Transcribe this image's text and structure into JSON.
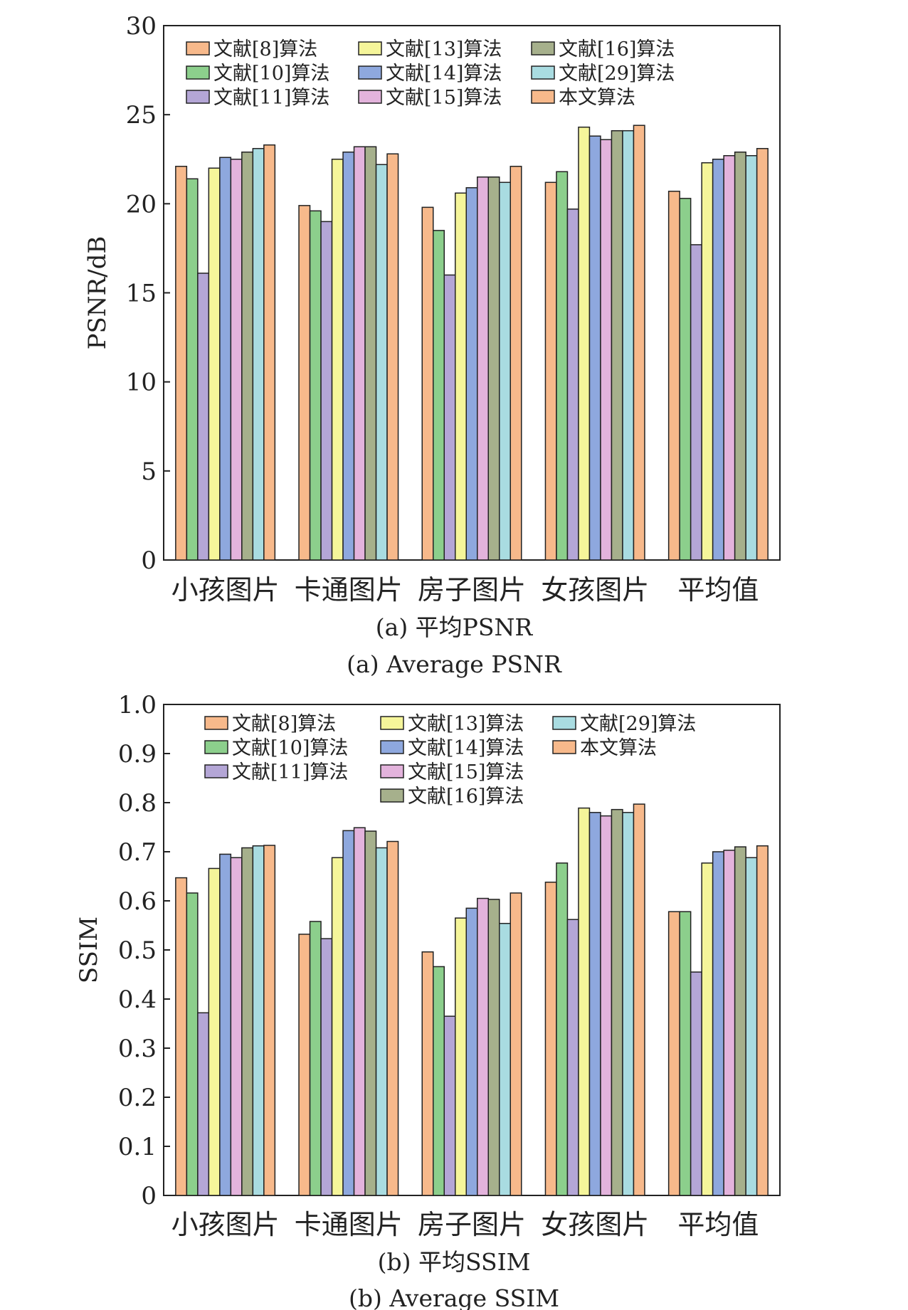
{
  "colors": {
    "文献[8]算法": "#f7b98b",
    "文献[10]算法": "#8ccf8c",
    "文献[11]算法": "#b4a6d6",
    "文献[13]算法": "#f5f59a",
    "文献[14]算法": "#8ea8de",
    "文献[15]算法": "#e3b3dc",
    "文献[16]算法": "#a6b08c",
    "文献[29]算法": "#a9dce1",
    "本文算法": "#f7b98b"
  },
  "chart_data": [
    {
      "type": "bar",
      "title": "(a) 平均PSNR",
      "title_en": "(a) Average PSNR",
      "xlabel": "",
      "ylabel": "PSNR/dB",
      "ylim": [
        0,
        30
      ],
      "yticks": [
        0,
        5,
        10,
        15,
        20,
        25,
        30
      ],
      "grid": false,
      "legend_position": "top",
      "categories": [
        "小孩图片",
        "卡通图片",
        "房子图片",
        "女孩图片",
        "平均值"
      ],
      "series": [
        {
          "name": "文献[8]算法",
          "values": [
            22.1,
            19.9,
            19.8,
            21.2,
            20.7
          ]
        },
        {
          "name": "文献[10]算法",
          "values": [
            21.4,
            19.6,
            18.5,
            21.8,
            20.3
          ]
        },
        {
          "name": "文献[11]算法",
          "values": [
            16.1,
            19.0,
            16.0,
            19.7,
            17.7
          ]
        },
        {
          "name": "文献[13]算法",
          "values": [
            22.0,
            22.5,
            20.6,
            24.3,
            22.3
          ]
        },
        {
          "name": "文献[14]算法",
          "values": [
            22.6,
            22.9,
            20.9,
            23.8,
            22.5
          ]
        },
        {
          "name": "文献[15]算法",
          "values": [
            22.5,
            23.2,
            21.5,
            23.6,
            22.7
          ]
        },
        {
          "name": "文献[16]算法",
          "values": [
            22.9,
            23.2,
            21.5,
            24.1,
            22.9
          ]
        },
        {
          "name": "文献[29]算法",
          "values": [
            23.1,
            22.2,
            21.2,
            24.1,
            22.7
          ]
        },
        {
          "name": "本文算法",
          "values": [
            23.3,
            22.8,
            22.1,
            24.4,
            23.1
          ]
        }
      ]
    },
    {
      "type": "bar",
      "title": "(b) 平均SSIM",
      "title_en": "(b) Average SSIM",
      "xlabel": "",
      "ylabel": "SSIM",
      "ylim": [
        0,
        1.0
      ],
      "yticks": [
        "0",
        "0.1",
        "0.2",
        "0.3",
        "0.4",
        "0.5",
        "0.6",
        "0.7",
        "0.8",
        "0.9",
        "1.0"
      ],
      "grid": false,
      "legend_position": "top",
      "categories": [
        "小孩图片",
        "卡通图片",
        "房子图片",
        "女孩图片",
        "平均值"
      ],
      "series": [
        {
          "name": "文献[8]算法",
          "values": [
            0.647,
            0.532,
            0.496,
            0.638,
            0.578
          ]
        },
        {
          "name": "文献[10]算法",
          "values": [
            0.616,
            0.558,
            0.466,
            0.677,
            0.578
          ]
        },
        {
          "name": "文献[11]算法",
          "values": [
            0.372,
            0.523,
            0.365,
            0.562,
            0.455
          ]
        },
        {
          "name": "文献[13]算法",
          "values": [
            0.666,
            0.688,
            0.565,
            0.789,
            0.677
          ]
        },
        {
          "name": "文献[14]算法",
          "values": [
            0.695,
            0.743,
            0.585,
            0.78,
            0.7
          ]
        },
        {
          "name": "文献[15]算法",
          "values": [
            0.688,
            0.749,
            0.605,
            0.773,
            0.703
          ]
        },
        {
          "name": "文献[16]算法",
          "values": [
            0.708,
            0.742,
            0.603,
            0.786,
            0.71
          ]
        },
        {
          "name": "文献[29]算法",
          "values": [
            0.712,
            0.708,
            0.554,
            0.78,
            0.688
          ]
        },
        {
          "name": "本文算法",
          "values": [
            0.713,
            0.721,
            0.616,
            0.797,
            0.712
          ]
        }
      ]
    }
  ]
}
